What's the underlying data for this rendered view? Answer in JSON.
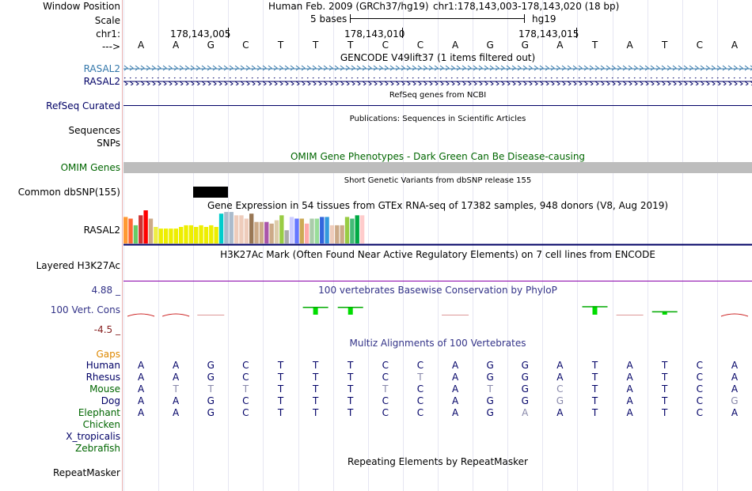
{
  "header": {
    "window_position_label": "Window Position",
    "assembly": "Human Feb. 2009 (GRCh37/hg19)",
    "position": "chr1:178,143,003-178,143,020 (18 bp)",
    "scale_label": "Scale",
    "scale_text": "5 bases",
    "scale_db": "hg19",
    "chrom_label": "chr1:",
    "coord_ticks": [
      "178,143,005",
      "178,143,010",
      "178,143,015"
    ],
    "strand_label": "--->",
    "reference_bases": [
      "A",
      "A",
      "G",
      "C",
      "T",
      "T",
      "T",
      "C",
      "C",
      "A",
      "G",
      "G",
      "A",
      "T",
      "A",
      "T",
      "C",
      "A"
    ]
  },
  "tracks": {
    "gencode": {
      "title": "GENCODE V49lift37 (1 items filtered out)",
      "items": [
        "RASAL2",
        "RASAL2"
      ]
    },
    "refseq": {
      "title": "RefSeq genes from NCBI",
      "label": "RefSeq Curated"
    },
    "publications": {
      "title": "Publications: Sequences in Scientific Articles",
      "labels": [
        "Sequences",
        "SNPs"
      ]
    },
    "omim": {
      "title": "OMIM Gene Phenotypes - Dark Green Can Be Disease-causing",
      "label": "OMIM Genes"
    },
    "dbsnp": {
      "title": "Short Genetic Variants from dbSNP release 155",
      "label": "Common dbSNP(155)"
    },
    "gtex": {
      "title": "Gene Expression in 54 tissues from GTEx RNA-seq of 17382 samples, 948 donors (V8, Aug 2019)",
      "label": "RASAL2",
      "bar_colors": [
        "#ff9933",
        "#ff6633",
        "#66cc66",
        "#cc3333",
        "#ff0000",
        "#ccaa88",
        "#eeee44",
        "#eeee00",
        "#eeee00",
        "#eeee00",
        "#eeee00",
        "#eeee00",
        "#eeee00",
        "#eeee00",
        "#eeee00",
        "#eeee00",
        "#eeee00",
        "#eeee00",
        "#eeee00",
        "#00cccc",
        "#aabbcc",
        "#aabbcc",
        "#eeccbb",
        "#eeccbb",
        "#eeccbb",
        "#997755",
        "#ccaa88",
        "#ccaa88",
        "#aa55aa",
        "#ccaa88",
        "#ddccaa",
        "#99cc44",
        "#aaaaaa",
        "#ccccff",
        "#6677ff",
        "#ccaa55",
        "#ffaaaa",
        "#aaccaa",
        "#99dd99",
        "#3366dd",
        "#3399dd",
        "#eeccbb",
        "#ccaa88",
        "#ccaa88",
        "#99cc44",
        "#44bb77",
        "#00aa44",
        "#ffcccc"
      ],
      "bar_values": [
        0.8,
        0.75,
        0.55,
        0.85,
        1.0,
        0.75,
        0.5,
        0.45,
        0.45,
        0.45,
        0.45,
        0.5,
        0.55,
        0.55,
        0.5,
        0.55,
        0.5,
        0.55,
        0.5,
        0.9,
        0.95,
        0.95,
        0.85,
        0.85,
        0.75,
        0.9,
        0.65,
        0.65,
        0.65,
        0.6,
        0.7,
        0.85,
        0.4,
        0.8,
        0.75,
        0.75,
        0.6,
        0.75,
        0.75,
        0.8,
        0.8,
        0.55,
        0.55,
        0.55,
        0.8,
        0.75,
        0.85,
        0.85
      ]
    },
    "h3k27ac": {
      "title": "H3K27Ac Mark (Often Found Near Active Regulatory Elements) on 7 cell lines from ENCODE",
      "label": "Layered H3K27Ac"
    },
    "phylop": {
      "title": "100 vertebrates Basewise Conservation by PhyloP",
      "label": "100 Vert. Cons",
      "ymax_label": "4.88 _",
      "ymin_label": "-4.5 _",
      "scores": [
        -0.6,
        -0.6,
        -0.2,
        0,
        0,
        2.5,
        2.5,
        0,
        0,
        -0.2,
        0,
        0,
        0,
        2.7,
        -0.2,
        1.1,
        0,
        -0.6
      ]
    },
    "multiz": {
      "title": "Multiz Alignments of 100 Vertebrates",
      "gaps_label": "Gaps",
      "species": [
        {
          "name": "Human",
          "color": "#000066",
          "bases": [
            "A",
            "A",
            "G",
            "C",
            "T",
            "T",
            "T",
            "C",
            "C",
            "A",
            "G",
            "G",
            "A",
            "T",
            "A",
            "T",
            "C",
            "A"
          ],
          "dim": []
        },
        {
          "name": "Rhesus",
          "color": "#000066",
          "bases": [
            "A",
            "A",
            "G",
            "C",
            "T",
            "T",
            "T",
            "C",
            "T",
            "A",
            "G",
            "G",
            "A",
            "T",
            "A",
            "T",
            "C",
            "A"
          ],
          "dim": [
            8
          ]
        },
        {
          "name": "Mouse",
          "color": "#006600",
          "bases": [
            "A",
            "T",
            "T",
            "T",
            "T",
            "T",
            "T",
            "T",
            "C",
            "A",
            "T",
            "G",
            "C",
            "T",
            "A",
            "T",
            "C",
            "A"
          ],
          "dim": [
            1,
            2,
            3,
            7,
            10,
            12
          ]
        },
        {
          "name": "Dog",
          "color": "#000066",
          "bases": [
            "A",
            "A",
            "G",
            "C",
            "T",
            "T",
            "T",
            "C",
            "C",
            "A",
            "G",
            "G",
            "G",
            "T",
            "A",
            "T",
            "C",
            "G"
          ],
          "dim": [
            12,
            17
          ]
        },
        {
          "name": "Elephant",
          "color": "#006600",
          "bases": [
            "A",
            "A",
            "G",
            "C",
            "T",
            "T",
            "T",
            "C",
            "C",
            "A",
            "G",
            "A",
            "A",
            "T",
            "A",
            "T",
            "C",
            "A"
          ],
          "dim": [
            11
          ]
        },
        {
          "name": "Chicken",
          "color": "#006600",
          "bases": [],
          "dim": []
        },
        {
          "name": "X_tropicalis",
          "color": "#000066",
          "bases": [],
          "dim": []
        },
        {
          "name": "Zebrafish",
          "color": "#006600",
          "bases": [],
          "dim": []
        }
      ]
    },
    "repeatmasker": {
      "title": "Repeating Elements by RepeatMasker",
      "label": "RepeatMasker"
    }
  }
}
